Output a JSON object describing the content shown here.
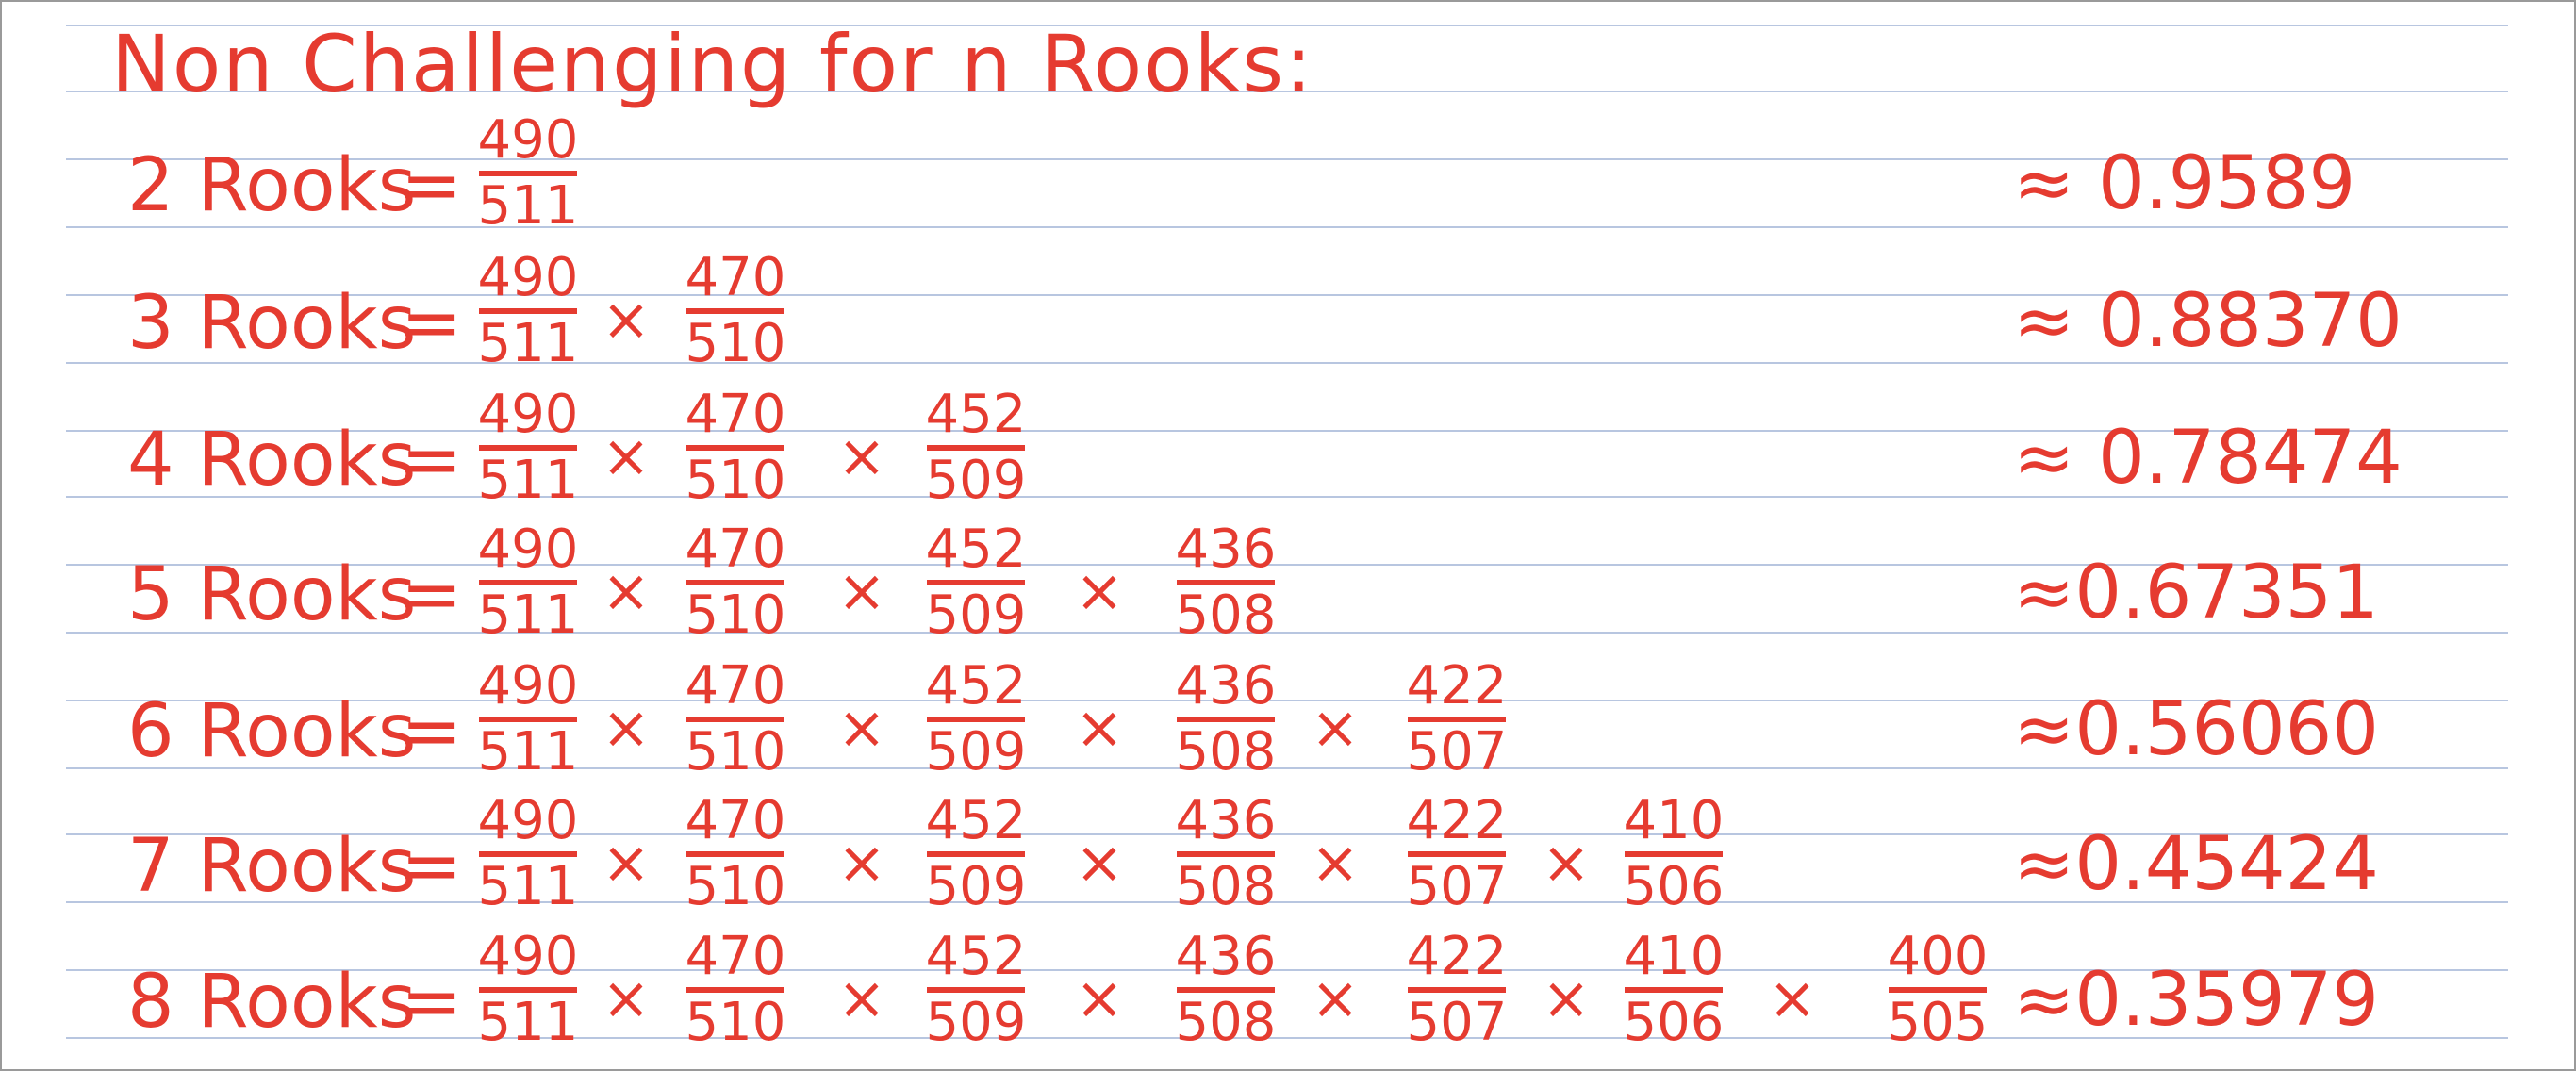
{
  "title": "Non Challenging for n Rooks:",
  "ink_color": "#e53b30",
  "rule_color": "#b8c6e0",
  "rows": [
    {
      "label": "2 Rooks",
      "equals": "=",
      "fractions": [
        {
          "num": "490",
          "den": "511"
        }
      ],
      "approx": "≈ 0.9589"
    },
    {
      "label": "3 Rooks",
      "equals": "=",
      "fractions": [
        {
          "num": "490",
          "den": "511"
        },
        {
          "num": "470",
          "den": "510"
        }
      ],
      "approx": "≈ 0.88370"
    },
    {
      "label": "4 Rooks",
      "equals": "=",
      "fractions": [
        {
          "num": "490",
          "den": "511"
        },
        {
          "num": "470",
          "den": "510"
        },
        {
          "num": "452",
          "den": "509"
        }
      ],
      "approx": "≈ 0.78474"
    },
    {
      "label": "5 Rooks",
      "equals": "=",
      "fractions": [
        {
          "num": "490",
          "den": "511"
        },
        {
          "num": "470",
          "den": "510"
        },
        {
          "num": "452",
          "den": "509"
        },
        {
          "num": "436",
          "den": "508"
        }
      ],
      "approx": "≈0.67351"
    },
    {
      "label": "6 Rooks",
      "equals": "=",
      "fractions": [
        {
          "num": "490",
          "den": "511"
        },
        {
          "num": "470",
          "den": "510"
        },
        {
          "num": "452",
          "den": "509"
        },
        {
          "num": "436",
          "den": "508"
        },
        {
          "num": "422",
          "den": "507"
        }
      ],
      "approx": "≈0.56060"
    },
    {
      "label": "7 Rooks",
      "equals": "=",
      "fractions": [
        {
          "num": "490",
          "den": "511"
        },
        {
          "num": "470",
          "den": "510"
        },
        {
          "num": "452",
          "den": "509"
        },
        {
          "num": "436",
          "den": "508"
        },
        {
          "num": "422",
          "den": "507"
        },
        {
          "num": "410",
          "den": "506"
        }
      ],
      "approx": "≈0.45424"
    },
    {
      "label": "8 Rooks",
      "equals": "=",
      "fractions": [
        {
          "num": "490",
          "den": "511"
        },
        {
          "num": "470",
          "den": "510"
        },
        {
          "num": "452",
          "den": "509"
        },
        {
          "num": "436",
          "den": "508"
        },
        {
          "num": "422",
          "den": "507"
        },
        {
          "num": "410",
          "den": "506"
        },
        {
          "num": "400",
          "den": "505"
        }
      ],
      "approx": "≈0.35979"
    }
  ],
  "times_symbol": "×"
}
